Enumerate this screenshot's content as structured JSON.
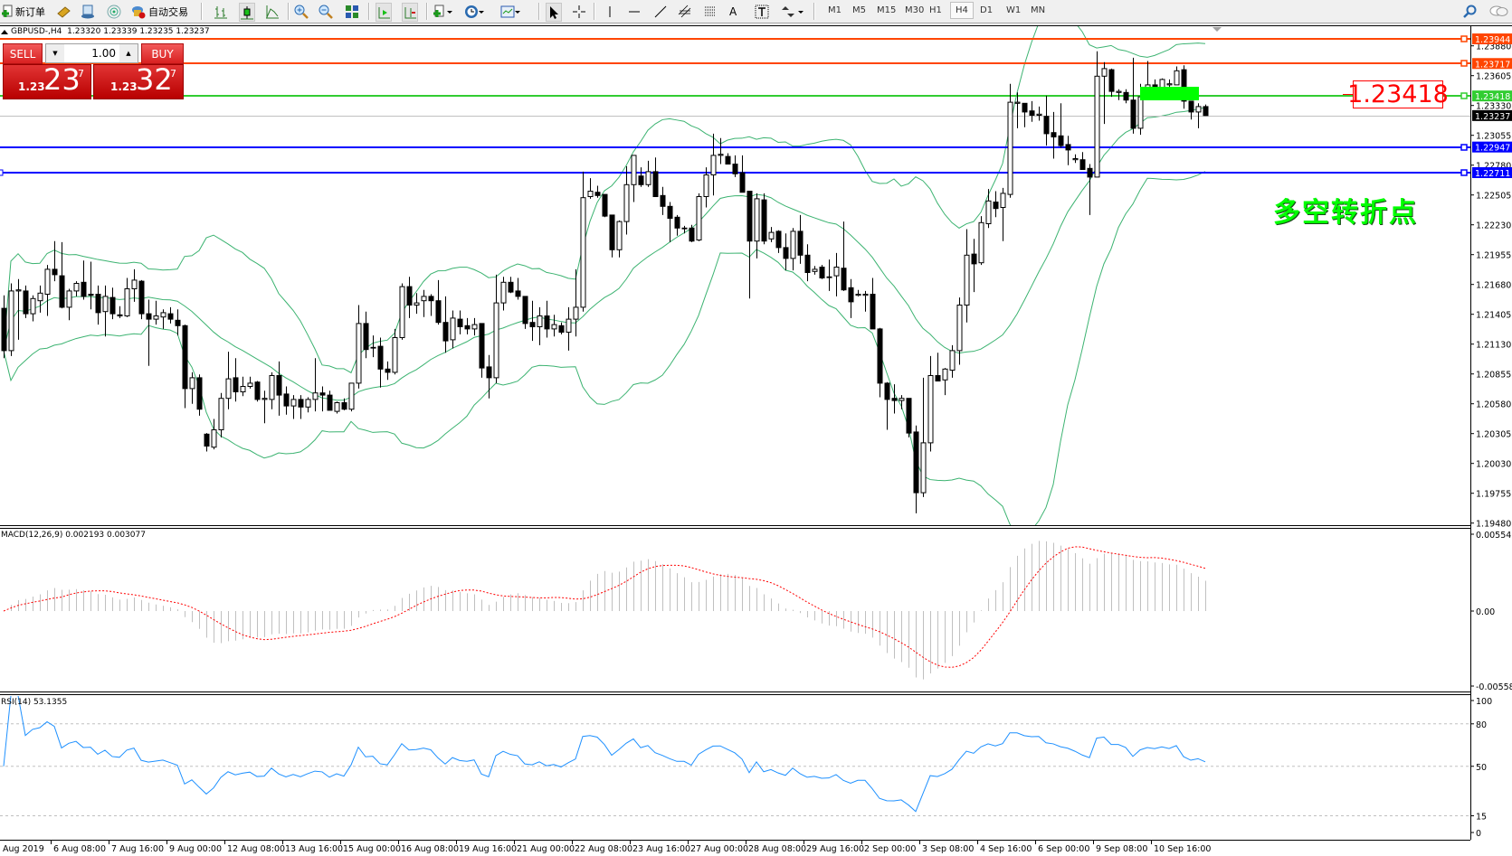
{
  "toolbar": {
    "new_order": {
      "label": "新订单",
      "icon": "new-order-icon"
    },
    "auto_trading": {
      "label": "自动交易",
      "icon": "auto-trading-icon"
    },
    "icons": [
      "market-watch-icon",
      "navigator-icon",
      "signals-icon",
      "bar-chart-icon",
      "candlestick-icon",
      "line-chart-icon",
      "zoom-in-icon",
      "zoom-out-icon",
      "tile-windows-icon",
      "chart-shift-icon",
      "autoscroll-icon",
      "new-chart-icon",
      "periods-icon",
      "templates-icon",
      "cursor-icon",
      "crosshair-icon",
      "vertical-line-icon",
      "horizontal-line-icon",
      "trendline-icon",
      "equidistant-channel-icon",
      "fibonacci-icon",
      "text-icon",
      "text-label-icon",
      "arrows-icon",
      "search-icon",
      "chat-icon"
    ],
    "timeframes": [
      "M1",
      "M5",
      "M15",
      "M30",
      "H1",
      "H4",
      "D1",
      "W1",
      "MN"
    ],
    "selected_timeframe": "H4"
  },
  "chart_header": {
    "symbol": "GBPUSD-,H4",
    "ohlc": "1.23320 1.23339 1.23235 1.23237"
  },
  "trade_panel": {
    "sell_label": "SELL",
    "buy_label": "BUY",
    "lot": "1.00",
    "sell": {
      "prefix": "1.23",
      "big": "23",
      "pipette": "7"
    },
    "buy": {
      "prefix": "1.23",
      "big": "32",
      "pipette": "7"
    }
  },
  "annotation": {
    "text": "多空转折点",
    "color": "#00ff00"
  },
  "price_label": "1.23418",
  "price_axis": [
    "1.23880",
    "1.23605",
    "1.23330",
    "1.23055",
    "1.22780",
    "1.22505",
    "1.22230",
    "1.21955",
    "1.21680",
    "1.21405",
    "1.21130",
    "1.20855",
    "1.20580",
    "1.20305",
    "1.20030",
    "1.19755",
    "1.19480"
  ],
  "horizontal_lines": [
    {
      "price": "1.23944",
      "color": "#FF4500"
    },
    {
      "price": "1.23717",
      "color": "#FF4500"
    },
    {
      "price": "1.23418",
      "color": "#32CD32"
    },
    {
      "price": "1.22947",
      "color": "#0000FF"
    },
    {
      "price": "1.22711",
      "color": "#0000FF"
    }
  ],
  "bid": {
    "price": "1.23237",
    "color": "#000000"
  },
  "time_axis": [
    "Aug 2019",
    "6 Aug 08:00",
    "7 Aug 16:00",
    "9 Aug 00:00",
    "12 Aug 08:00",
    "13 Aug 16:00",
    "15 Aug 00:00",
    "16 Aug 08:00",
    "19 Aug 16:00",
    "21 Aug 00:00",
    "22 Aug 08:00",
    "23 Aug 16:00",
    "27 Aug 00:00",
    "28 Aug 08:00",
    "29 Aug 16:00",
    "2 Sep 00:00",
    "3 Sep 08:00",
    "4 Sep 16:00",
    "6 Sep 00:00",
    "9 Sep 08:00",
    "10 Sep 16:00"
  ],
  "macd": {
    "label": "MACD(12,26,9) 0.002193 0.003077",
    "axis": [
      "0.005543",
      "0.00",
      "-0.005583"
    ],
    "range": [
      -0.005583,
      0.005543
    ],
    "histogram_color": "#C0C0C0",
    "signal_color": "#FF0000"
  },
  "rsi": {
    "label": "RSI(14) 53.1355",
    "axis": [
      "100",
      "80",
      "50",
      "15",
      "0"
    ],
    "levels": [
      80,
      50,
      15
    ],
    "color": "#1E90FF"
  },
  "bollinger": {
    "period": 20,
    "deviation": 2,
    "color": "#3CB371"
  },
  "chart": {
    "type": "candlestick",
    "timeframe": "H4",
    "ylim": [
      1.1948,
      1.23944
    ],
    "candles_ohlc": [
      [
        1.2146,
        1.2158,
        1.21,
        1.2107
      ],
      [
        1.2107,
        1.2169,
        1.2102,
        1.2162
      ],
      [
        1.2162,
        1.2173,
        1.2117,
        1.2163
      ],
      [
        1.2162,
        1.2167,
        1.2137,
        1.2141
      ],
      [
        1.2141,
        1.2158,
        1.2134,
        1.2155
      ],
      [
        1.2153,
        1.2167,
        1.2142,
        1.216
      ],
      [
        1.2159,
        1.2186,
        1.2139,
        1.2182
      ],
      [
        1.2182,
        1.2208,
        1.2171,
        1.2177
      ],
      [
        1.2176,
        1.2207,
        1.2146,
        1.2147
      ],
      [
        1.2147,
        1.2164,
        1.2135,
        1.2162
      ],
      [
        1.2162,
        1.2171,
        1.2157,
        1.2169
      ],
      [
        1.217,
        1.219,
        1.2154,
        1.2157
      ],
      [
        1.2159,
        1.2189,
        1.2145,
        1.2158
      ],
      [
        1.2159,
        1.2167,
        1.2131,
        1.2142
      ],
      [
        1.2143,
        1.2167,
        1.212,
        1.2157
      ],
      [
        1.2156,
        1.2165,
        1.2136,
        1.2141
      ],
      [
        1.214,
        1.2148,
        1.2137,
        1.2139
      ],
      [
        1.2139,
        1.2174,
        1.2138,
        1.2164
      ],
      [
        1.2164,
        1.2182,
        1.2152,
        1.2172
      ],
      [
        1.2171,
        1.2172,
        1.2136,
        1.2141
      ],
      [
        1.2141,
        1.2154,
        1.2093,
        1.2136
      ],
      [
        1.2136,
        1.2153,
        1.2131,
        1.2139
      ],
      [
        1.2138,
        1.2145,
        1.2127,
        1.2142
      ],
      [
        1.2141,
        1.2147,
        1.2132,
        1.2136
      ],
      [
        1.2135,
        1.2145,
        1.2121,
        1.213
      ],
      [
        1.213,
        1.2131,
        1.2054,
        1.2072
      ],
      [
        1.2072,
        1.2087,
        1.2058,
        1.2082
      ],
      [
        1.2082,
        1.2085,
        1.2047,
        1.2053
      ],
      [
        1.203,
        1.2031,
        1.2014,
        1.2019
      ],
      [
        1.2018,
        1.2044,
        1.2016,
        1.2034
      ],
      [
        1.2034,
        1.2068,
        1.2027,
        1.2063
      ],
      [
        1.2063,
        1.2106,
        1.2053,
        1.2081
      ],
      [
        1.2082,
        1.21,
        1.206,
        1.2069
      ],
      [
        1.2069,
        1.2083,
        1.2065,
        1.2074
      ],
      [
        1.2074,
        1.2083,
        1.2072,
        1.2077
      ],
      [
        1.2078,
        1.2079,
        1.206,
        1.2062
      ],
      [
        1.2062,
        1.207,
        1.204,
        1.2063
      ],
      [
        1.2062,
        1.2087,
        1.2053,
        1.2084
      ],
      [
        1.2084,
        1.2097,
        1.2047,
        1.2066
      ],
      [
        1.2067,
        1.2074,
        1.2048,
        1.2056
      ],
      [
        1.2056,
        1.2066,
        1.2044,
        1.2062
      ],
      [
        1.2062,
        1.2066,
        1.2044,
        1.2055
      ],
      [
        1.2055,
        1.2064,
        1.205,
        1.2062
      ],
      [
        1.2062,
        1.21,
        1.2051,
        1.2068
      ],
      [
        1.2068,
        1.2074,
        1.2051,
        1.2066
      ],
      [
        1.2066,
        1.207,
        1.2052,
        1.2052
      ],
      [
        1.2051,
        1.206,
        1.2049,
        1.2059
      ],
      [
        1.2059,
        1.2063,
        1.2052,
        1.2053
      ],
      [
        1.2053,
        1.2077,
        1.2051,
        1.2077
      ],
      [
        1.2077,
        1.2149,
        1.2072,
        1.2132
      ],
      [
        1.2132,
        1.2143,
        1.21,
        1.2108
      ],
      [
        1.211,
        1.2121,
        1.2101,
        1.211
      ],
      [
        1.2111,
        1.2119,
        1.2073,
        1.209
      ],
      [
        1.209,
        1.2097,
        1.208,
        1.2087
      ],
      [
        1.2087,
        1.2127,
        1.2085,
        1.2119
      ],
      [
        1.2119,
        1.2169,
        1.2117,
        1.2166
      ],
      [
        1.2166,
        1.2175,
        1.2137,
        1.2149
      ],
      [
        1.2149,
        1.216,
        1.2141,
        1.2151
      ],
      [
        1.2153,
        1.2163,
        1.2138,
        1.2157
      ],
      [
        1.2157,
        1.2159,
        1.2139,
        1.2153
      ],
      [
        1.2153,
        1.2172,
        1.2131,
        1.2133
      ],
      [
        1.2133,
        1.2157,
        1.2105,
        1.2116
      ],
      [
        1.2117,
        1.2144,
        1.2109,
        1.2137
      ],
      [
        1.2136,
        1.2144,
        1.2122,
        1.2129
      ],
      [
        1.213,
        1.2137,
        1.2122,
        1.2127
      ],
      [
        1.2127,
        1.2137,
        1.2121,
        1.2131
      ],
      [
        1.2132,
        1.2132,
        1.2082,
        1.2091
      ],
      [
        1.2092,
        1.2103,
        1.2063,
        1.2082
      ],
      [
        1.2082,
        1.2177,
        1.2077,
        1.2151
      ],
      [
        1.2151,
        1.2175,
        1.2144,
        1.217
      ],
      [
        1.217,
        1.2175,
        1.216,
        1.2161
      ],
      [
        1.2162,
        1.2174,
        1.2154,
        1.2157
      ],
      [
        1.2157,
        1.2157,
        1.2127,
        1.2132
      ],
      [
        1.2133,
        1.2153,
        1.2116,
        1.2129
      ],
      [
        1.2129,
        1.2147,
        1.2112,
        1.2139
      ],
      [
        1.2139,
        1.2153,
        1.2119,
        1.2127
      ],
      [
        1.2127,
        1.214,
        1.212,
        1.2131
      ],
      [
        1.213,
        1.2133,
        1.2122,
        1.2124
      ],
      [
        1.2124,
        1.2147,
        1.2107,
        1.2136
      ],
      [
        1.2136,
        1.2182,
        1.212,
        1.2147
      ],
      [
        1.2147,
        1.2272,
        1.2143,
        1.2248
      ],
      [
        1.2249,
        1.2266,
        1.2247,
        1.2254
      ],
      [
        1.2253,
        1.2259,
        1.2248,
        1.225
      ],
      [
        1.2251,
        1.2251,
        1.223,
        1.2231
      ],
      [
        1.2232,
        1.2232,
        1.2193,
        1.22
      ],
      [
        1.22,
        1.2227,
        1.2193,
        1.2226
      ],
      [
        1.2226,
        1.2277,
        1.2214,
        1.226
      ],
      [
        1.226,
        1.2287,
        1.2244,
        1.2287
      ],
      [
        1.2268,
        1.2276,
        1.2258,
        1.226
      ],
      [
        1.226,
        1.2282,
        1.2258,
        1.2272
      ],
      [
        1.2272,
        1.2285,
        1.2249,
        1.2249
      ],
      [
        1.225,
        1.2258,
        1.2232,
        1.224
      ],
      [
        1.224,
        1.2244,
        1.2207,
        1.2229
      ],
      [
        1.223,
        1.2232,
        1.2213,
        1.222
      ],
      [
        1.222,
        1.2222,
        1.2215,
        1.222
      ],
      [
        1.222,
        1.2223,
        1.2207,
        1.2208
      ],
      [
        1.2209,
        1.2252,
        1.2208,
        1.2249
      ],
      [
        1.2249,
        1.2276,
        1.2239,
        1.2269
      ],
      [
        1.2269,
        1.2307,
        1.225,
        1.2287
      ],
      [
        1.2287,
        1.2303,
        1.2279,
        1.2288
      ],
      [
        1.2286,
        1.2289,
        1.2279,
        1.2279
      ],
      [
        1.2279,
        1.2287,
        1.2267,
        1.227
      ],
      [
        1.2271,
        1.2287,
        1.2253,
        1.2253
      ],
      [
        1.2254,
        1.2254,
        1.2155,
        1.2208
      ],
      [
        1.2208,
        1.2252,
        1.2192,
        1.2247
      ],
      [
        1.2246,
        1.2252,
        1.2205,
        1.2208
      ],
      [
        1.221,
        1.2221,
        1.2207,
        1.2216
      ],
      [
        1.2217,
        1.2218,
        1.2197,
        1.2202
      ],
      [
        1.2202,
        1.2215,
        1.2181,
        1.2192
      ],
      [
        1.2192,
        1.222,
        1.2181,
        1.2217
      ],
      [
        1.2217,
        1.2232,
        1.2187,
        1.2195
      ],
      [
        1.2195,
        1.2205,
        1.2171,
        1.2179
      ],
      [
        1.218,
        1.2185,
        1.2177,
        1.2182
      ],
      [
        1.2184,
        1.2186,
        1.2173,
        1.2174
      ],
      [
        1.2175,
        1.2191,
        1.2162,
        1.2175
      ],
      [
        1.2176,
        1.2197,
        1.2157,
        1.2184
      ],
      [
        1.2183,
        1.2226,
        1.2162,
        1.2163
      ],
      [
        1.2165,
        1.2173,
        1.2137,
        1.2152
      ],
      [
        1.2158,
        1.2163,
        1.2157,
        1.2159
      ],
      [
        1.2158,
        1.2162,
        1.2143,
        1.2159
      ],
      [
        1.2159,
        1.2174,
        1.2127,
        1.2127
      ],
      [
        1.2127,
        1.2128,
        1.2064,
        1.2077
      ],
      [
        1.2077,
        1.2078,
        1.2034,
        1.2062
      ],
      [
        1.2063,
        1.2076,
        1.2049,
        1.2061
      ],
      [
        1.2061,
        1.2066,
        1.2053,
        1.2063
      ],
      [
        1.2063,
        1.2063,
        1.2027,
        1.2031
      ],
      [
        1.2032,
        1.2038,
        1.1957,
        1.1976
      ],
      [
        1.1976,
        1.2082,
        1.1972,
        1.2022
      ],
      [
        1.2022,
        1.2102,
        1.2014,
        1.2084
      ],
      [
        1.2084,
        1.2105,
        1.2079,
        1.2079
      ],
      [
        1.208,
        1.2091,
        1.2066,
        1.209
      ],
      [
        1.2089,
        1.2112,
        1.2082,
        1.2107
      ],
      [
        1.2107,
        1.2156,
        1.2094,
        1.2149
      ],
      [
        1.2149,
        1.2219,
        1.2133,
        1.2195
      ],
      [
        1.2196,
        1.221,
        1.2161,
        1.2187
      ],
      [
        1.2188,
        1.2231,
        1.2186,
        1.2225
      ],
      [
        1.2224,
        1.2256,
        1.222,
        1.2245
      ],
      [
        1.2244,
        1.2254,
        1.223,
        1.2238
      ],
      [
        1.2239,
        1.2257,
        1.2208,
        1.2252
      ],
      [
        1.2251,
        1.2353,
        1.2248,
        1.2336
      ],
      [
        1.2335,
        1.2345,
        1.2312,
        1.2336
      ],
      [
        1.2335,
        1.2335,
        1.2313,
        1.2327
      ],
      [
        1.2328,
        1.2337,
        1.2318,
        1.2324
      ],
      [
        1.2324,
        1.2332,
        1.2319,
        1.2325
      ],
      [
        1.2323,
        1.2342,
        1.2296,
        1.2307
      ],
      [
        1.2308,
        1.2327,
        1.2284,
        1.2304
      ],
      [
        1.2305,
        1.2335,
        1.2294,
        1.2296
      ],
      [
        1.2297,
        1.2305,
        1.2278,
        1.2292
      ],
      [
        1.2283,
        1.2288,
        1.228,
        1.2284
      ],
      [
        1.2283,
        1.229,
        1.2274,
        1.2274
      ],
      [
        1.2275,
        1.2279,
        1.2232,
        1.2267
      ],
      [
        1.2267,
        1.2383,
        1.2267,
        1.236
      ],
      [
        1.236,
        1.2373,
        1.2316,
        1.2367
      ],
      [
        1.2366,
        1.2367,
        1.2341,
        1.2346
      ],
      [
        1.2345,
        1.2348,
        1.2338,
        1.2346
      ],
      [
        1.2345,
        1.2348,
        1.2335,
        1.2338
      ],
      [
        1.2338,
        1.2377,
        1.2307,
        1.2312
      ],
      [
        1.2312,
        1.2353,
        1.2306,
        1.2341
      ],
      [
        1.2341,
        1.2374,
        1.2341,
        1.2352
      ],
      [
        1.2352,
        1.2357,
        1.2349,
        1.2349
      ],
      [
        1.2349,
        1.2358,
        1.2349,
        1.2357
      ],
      [
        1.2352,
        1.2357,
        1.2349,
        1.2353
      ],
      [
        1.2352,
        1.2369,
        1.2352,
        1.2365
      ],
      [
        1.2366,
        1.237,
        1.233,
        1.2337
      ],
      [
        1.2337,
        1.2337,
        1.232,
        1.2327
      ],
      [
        1.2327,
        1.2335,
        1.2312,
        1.2332
      ],
      [
        1.2332,
        1.23339,
        1.23235,
        1.23237
      ]
    ]
  }
}
